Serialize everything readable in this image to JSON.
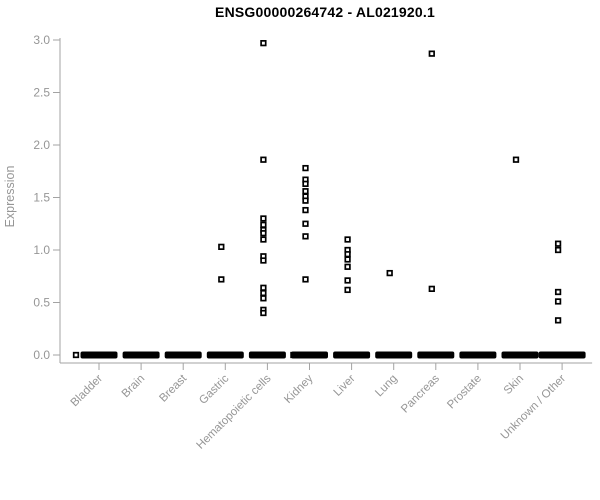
{
  "chart_data": {
    "type": "scatter",
    "title": "ENSG00000264742 - AL021920.1",
    "xlabel": "",
    "ylabel": "Expression",
    "ylim": [
      0.0,
      3.0
    ],
    "grid": false,
    "legend": "none",
    "marker_style": "open-square",
    "y_ticks": [
      0.0,
      0.5,
      1.0,
      1.5,
      2.0,
      2.5,
      3.0
    ],
    "y_tick_labels": [
      "0.0",
      "0.5",
      "1.0",
      "1.5",
      "2.0",
      "2.5",
      "3.0"
    ],
    "categories": [
      "Bladder",
      "Brain",
      "Breast",
      "Gastric",
      "Hematopoietic cells",
      "Kidney",
      "Liver",
      "Lung",
      "Pancreas",
      "Prostate",
      "Skin",
      "Unknown / Other"
    ],
    "series": [
      {
        "category": "Bladder",
        "values": [],
        "zero_cluster": true,
        "zero_bar": {
          "width": 37,
          "extras": [
            -23
          ]
        }
      },
      {
        "category": "Brain",
        "values": [],
        "zero_cluster": true,
        "zero_bar": {
          "width": 37,
          "extras": []
        }
      },
      {
        "category": "Breast",
        "values": [],
        "zero_cluster": true,
        "zero_bar": {
          "width": 37,
          "extras": []
        }
      },
      {
        "category": "Gastric",
        "values": [
          1.03,
          0.72
        ],
        "zero_cluster": true,
        "zero_bar": {
          "width": 37,
          "extras": []
        }
      },
      {
        "category": "Hematopoietic cells",
        "values": [
          2.97,
          1.86,
          1.3,
          1.24,
          1.19,
          1.16,
          1.1,
          0.94,
          0.9,
          0.64,
          0.59,
          0.54,
          0.43,
          0.4
        ],
        "zero_cluster": true,
        "zero_bar": {
          "width": 37,
          "extras": [
            26
          ]
        }
      },
      {
        "category": "Kidney",
        "values": [
          1.78,
          1.67,
          1.63,
          1.56,
          1.51,
          1.47,
          1.38,
          1.25,
          1.13,
          0.72
        ],
        "zero_cluster": true,
        "zero_bar": {
          "width": 37,
          "extras": []
        }
      },
      {
        "category": "Liver",
        "values": [
          1.1,
          1.0,
          0.96,
          0.91,
          0.84,
          0.71,
          0.62
        ],
        "zero_cluster": true,
        "zero_bar": {
          "width": 37,
          "extras": []
        }
      },
      {
        "category": "Lung",
        "values": [
          0.78
        ],
        "zero_cluster": true,
        "zero_bar": {
          "width": 37,
          "extras": []
        }
      },
      {
        "category": "Pancreas",
        "values": [
          2.87,
          0.63
        ],
        "zero_cluster": true,
        "zero_bar": {
          "width": 37,
          "extras": []
        }
      },
      {
        "category": "Prostate",
        "values": [],
        "zero_cluster": true,
        "zero_bar": {
          "width": 37,
          "extras": []
        }
      },
      {
        "category": "Skin",
        "values": [
          1.86
        ],
        "zero_cluster": true,
        "zero_bar": {
          "width": 37,
          "extras": []
        }
      },
      {
        "category": "Unknown / Other",
        "values": [
          1.06,
          1.0,
          0.6,
          0.51,
          0.33
        ],
        "zero_cluster": true,
        "zero_bar": {
          "width": 47,
          "extras": []
        }
      }
    ]
  },
  "colors": {
    "background": "#ffffff",
    "title_text": "#000000",
    "axis_line": "#a3a3a3",
    "tick_text": "#969696",
    "marker_stroke": "#000000",
    "marker_fill": "#ffffff",
    "zero_bar": "#000000"
  }
}
